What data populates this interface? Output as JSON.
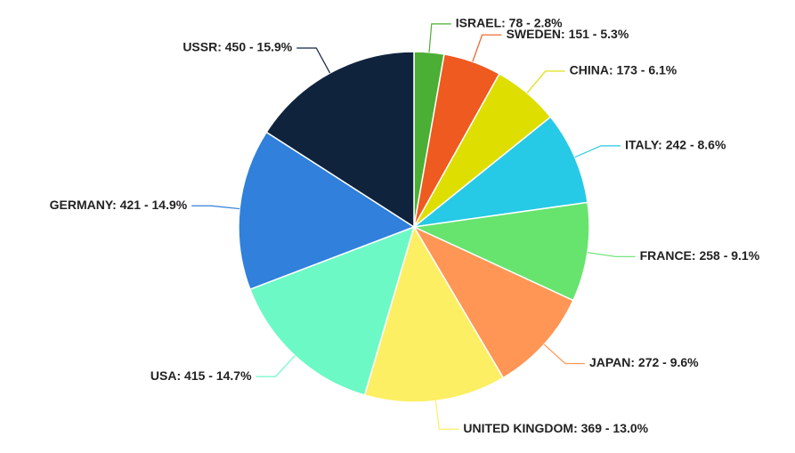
{
  "chart_data": {
    "type": "pie",
    "values": [
      78,
      151,
      173,
      242,
      258,
      272,
      369,
      415,
      421,
      450
    ],
    "value_labels": [
      "ISRAEL: 78 - 2.8%",
      "SWEDEN: 151 - 5.3%",
      "CHINA: 173 - 6.1%",
      "ITALY: 242 - 8.6%",
      "FRANCE: 258 - 9.1%",
      "JAPAN: 272 - 9.6%",
      "UNITED KINGDOM: 369 - 13.0%",
      "USA: 415 - 14.7%",
      "GERMANY: 421 - 14.9%",
      "USSR: 450 - 15.9%"
    ],
    "colors": [
      "#4caf35",
      "#ee5a1f",
      "#dede00",
      "#26c9e6",
      "#66e46e",
      "#ff9655",
      "#fdef63",
      "#6cf9c6",
      "#3080dc",
      "#10233d"
    ]
  }
}
